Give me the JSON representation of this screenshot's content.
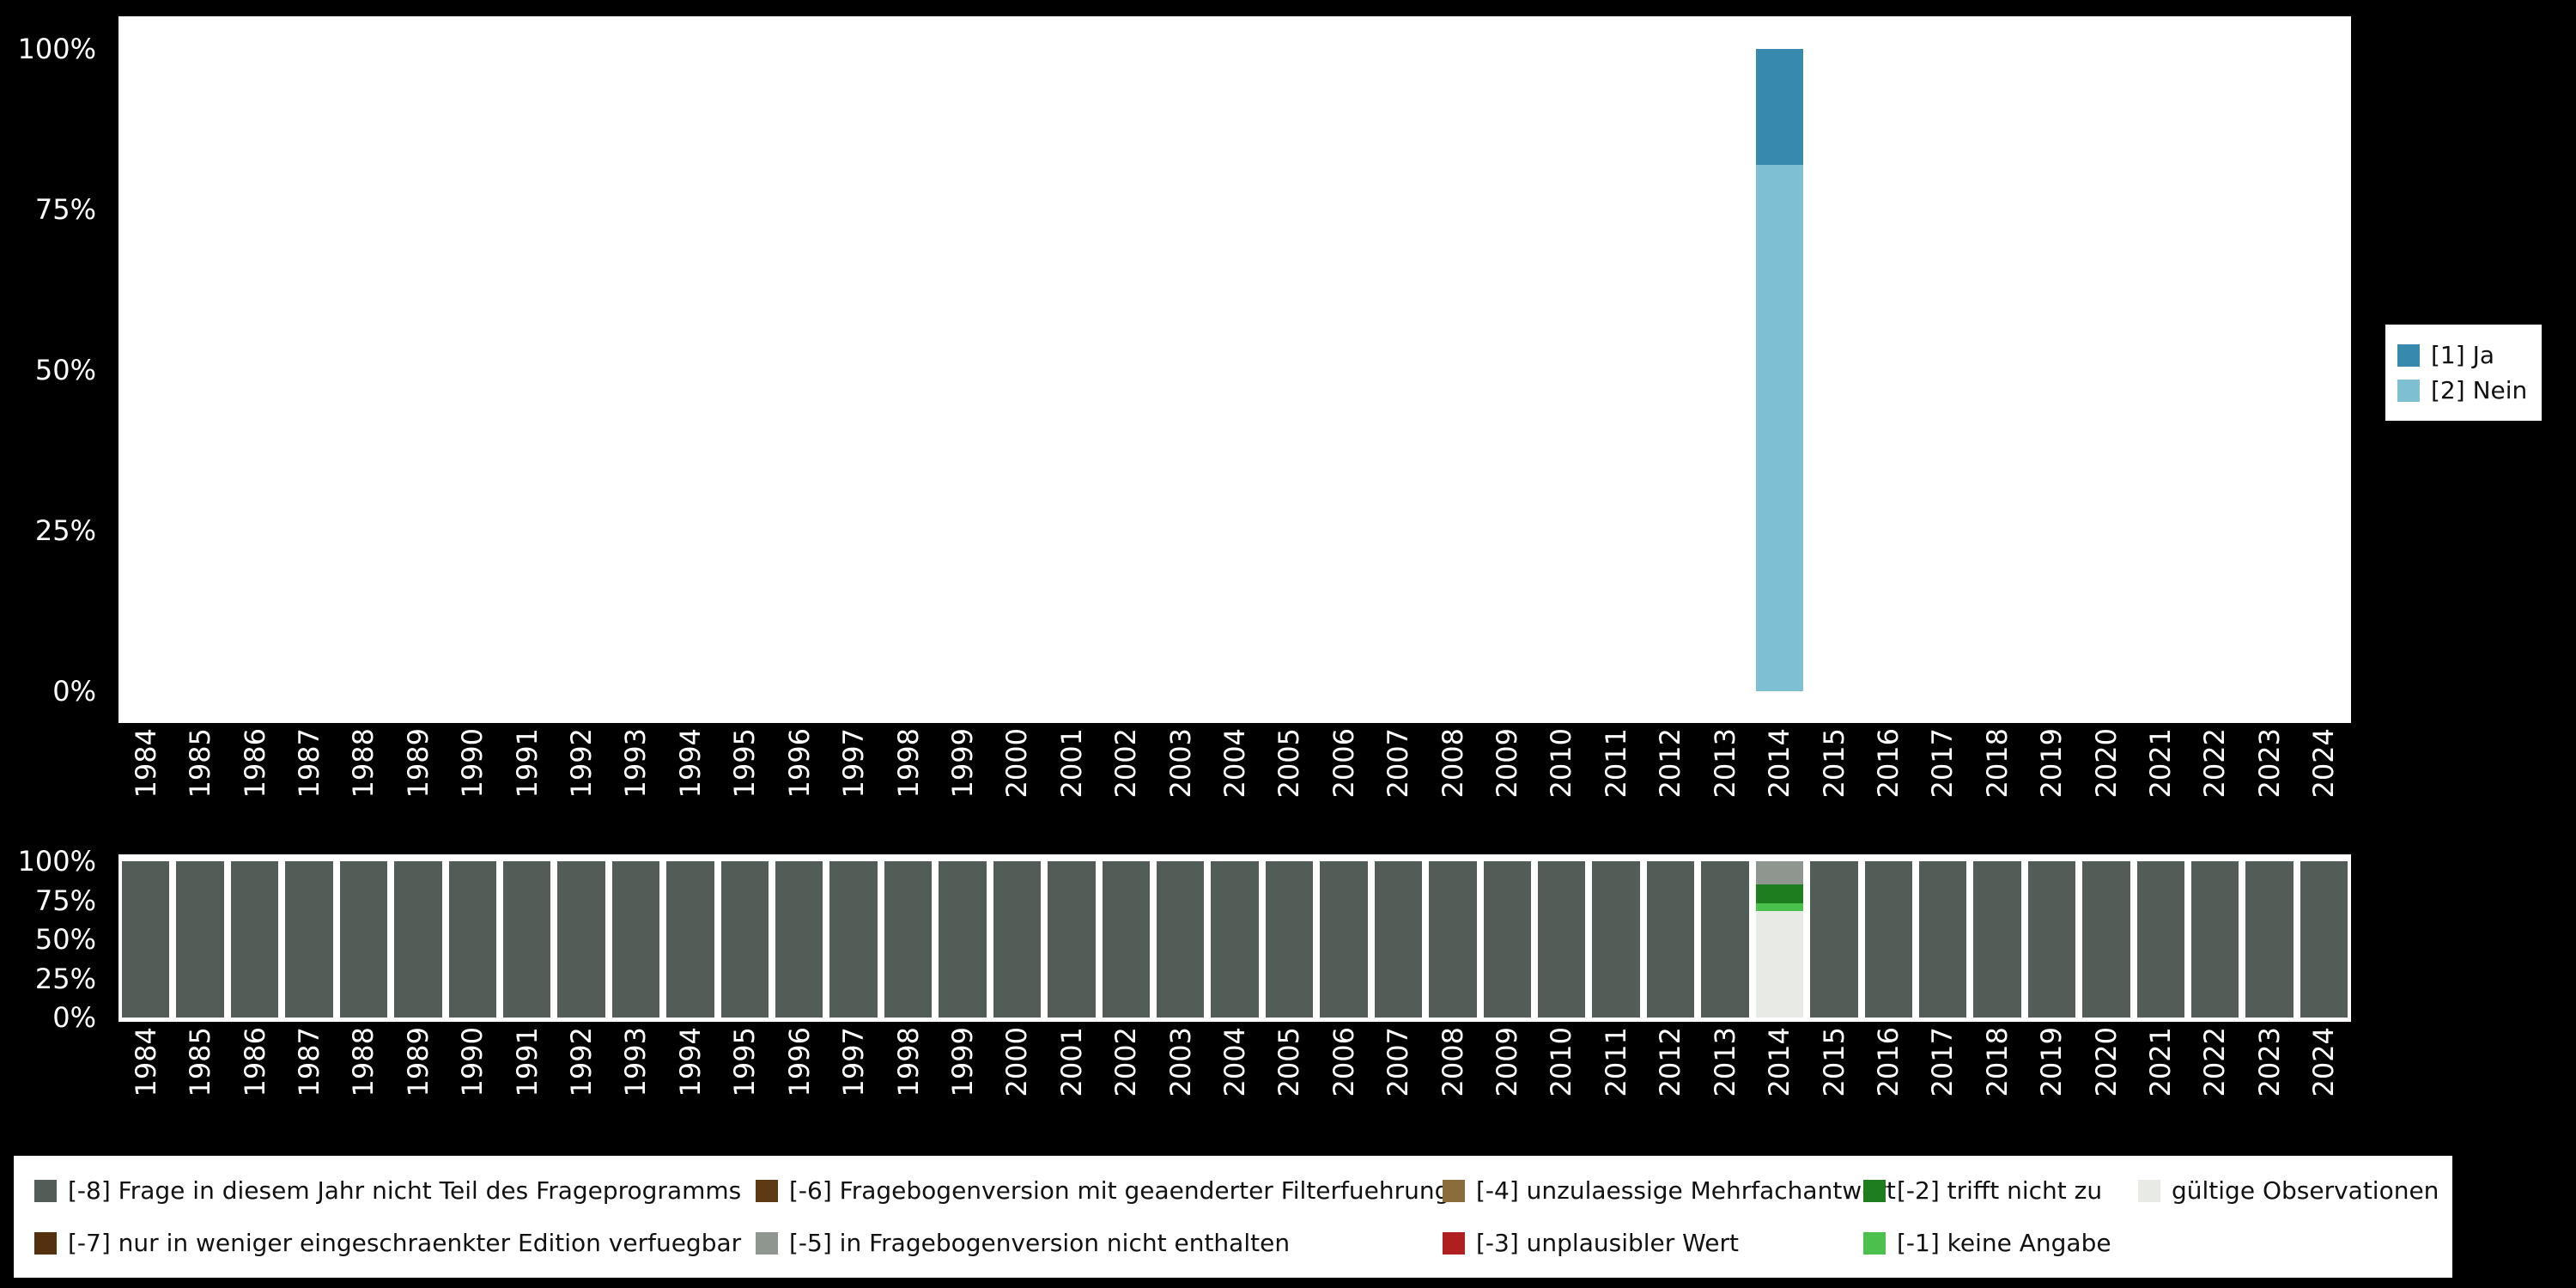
{
  "page": {
    "background_color": "#000000",
    "plot_background_color": "#ffffff",
    "axis_text_color": "#ffffff"
  },
  "chart_data": [
    {
      "name": "distribution-by-year",
      "type": "bar",
      "stacked": true,
      "title": "",
      "xlabel": "",
      "ylabel": "",
      "ylim": [
        0,
        100
      ],
      "grid": false,
      "yticks": [
        100,
        75,
        50,
        25,
        0
      ],
      "ytick_labels": [
        "100%",
        "75%",
        "50%",
        "25%",
        "0%"
      ],
      "categories": [
        "1984",
        "1985",
        "1986",
        "1987",
        "1988",
        "1989",
        "1990",
        "1991",
        "1992",
        "1993",
        "1994",
        "1995",
        "1996",
        "1997",
        "1998",
        "1999",
        "2000",
        "2001",
        "2002",
        "2003",
        "2004",
        "2005",
        "2006",
        "2007",
        "2008",
        "2009",
        "2010",
        "2011",
        "2012",
        "2013",
        "2014",
        "2015",
        "2016",
        "2017",
        "2018",
        "2019",
        "2020",
        "2021",
        "2022",
        "2023",
        "2024"
      ],
      "series": [
        {
          "name": "[1] Ja",
          "color": "#3789ad",
          "values": [
            0,
            0,
            0,
            0,
            0,
            0,
            0,
            0,
            0,
            0,
            0,
            0,
            0,
            0,
            0,
            0,
            0,
            0,
            0,
            0,
            0,
            0,
            0,
            0,
            0,
            0,
            0,
            0,
            0,
            0,
            18,
            0,
            0,
            0,
            0,
            0,
            0,
            0,
            0,
            0,
            0
          ]
        },
        {
          "name": "[2] Nein",
          "color": "#7fbfd4",
          "values": [
            0,
            0,
            0,
            0,
            0,
            0,
            0,
            0,
            0,
            0,
            0,
            0,
            0,
            0,
            0,
            0,
            0,
            0,
            0,
            0,
            0,
            0,
            0,
            0,
            0,
            0,
            0,
            0,
            0,
            0,
            82,
            0,
            0,
            0,
            0,
            0,
            0,
            0,
            0,
            0,
            0
          ]
        }
      ],
      "legend_position": "right",
      "legend_items": [
        {
          "label": "[1] Ja",
          "color": "#3789ad"
        },
        {
          "label": "[2] Nein",
          "color": "#7fbfd4"
        }
      ]
    },
    {
      "name": "missing-values-by-year",
      "type": "bar",
      "stacked": true,
      "title": "",
      "xlabel": "",
      "ylabel": "",
      "ylim": [
        0,
        100
      ],
      "grid": false,
      "yticks": [
        100,
        75,
        50,
        25,
        0
      ],
      "ytick_labels": [
        "100%",
        "75%",
        "50%",
        "25%",
        "0%"
      ],
      "categories": [
        "1984",
        "1985",
        "1986",
        "1987",
        "1988",
        "1989",
        "1990",
        "1991",
        "1992",
        "1993",
        "1994",
        "1995",
        "1996",
        "1997",
        "1998",
        "1999",
        "2000",
        "2001",
        "2002",
        "2003",
        "2004",
        "2005",
        "2006",
        "2007",
        "2008",
        "2009",
        "2010",
        "2011",
        "2012",
        "2013",
        "2014",
        "2015",
        "2016",
        "2017",
        "2018",
        "2019",
        "2020",
        "2021",
        "2022",
        "2023",
        "2024"
      ],
      "series": [
        {
          "name": "[-8] Frage in diesem Jahr nicht Teil des Frageprogramms",
          "color": "#525d57",
          "values": [
            100,
            100,
            100,
            100,
            100,
            100,
            100,
            100,
            100,
            100,
            100,
            100,
            100,
            100,
            100,
            100,
            100,
            100,
            100,
            100,
            100,
            100,
            100,
            100,
            100,
            100,
            100,
            100,
            100,
            100,
            0,
            100,
            100,
            100,
            100,
            100,
            100,
            100,
            100,
            100,
            100
          ]
        },
        {
          "name": "[-5] in Fragebogenversion nicht enthalten",
          "color": "#8e968f",
          "values": [
            0,
            0,
            0,
            0,
            0,
            0,
            0,
            0,
            0,
            0,
            0,
            0,
            0,
            0,
            0,
            0,
            0,
            0,
            0,
            0,
            0,
            0,
            0,
            0,
            0,
            0,
            0,
            0,
            0,
            0,
            15,
            0,
            0,
            0,
            0,
            0,
            0,
            0,
            0,
            0,
            0
          ]
        },
        {
          "name": "[-2] trifft nicht zu",
          "color": "#1e7d1e",
          "values": [
            0,
            0,
            0,
            0,
            0,
            0,
            0,
            0,
            0,
            0,
            0,
            0,
            0,
            0,
            0,
            0,
            0,
            0,
            0,
            0,
            0,
            0,
            0,
            0,
            0,
            0,
            0,
            0,
            0,
            0,
            12,
            0,
            0,
            0,
            0,
            0,
            0,
            0,
            0,
            0,
            0
          ]
        },
        {
          "name": "[-1] keine Angabe",
          "color": "#4cc04c",
          "values": [
            0,
            0,
            0,
            0,
            0,
            0,
            0,
            0,
            0,
            0,
            0,
            0,
            0,
            0,
            0,
            0,
            0,
            0,
            0,
            0,
            0,
            0,
            0,
            0,
            0,
            0,
            0,
            0,
            0,
            0,
            5,
            0,
            0,
            0,
            0,
            0,
            0,
            0,
            0,
            0,
            0
          ]
        },
        {
          "name": "gültige Observationen",
          "color": "#e8eae5",
          "values": [
            0,
            0,
            0,
            0,
            0,
            0,
            0,
            0,
            0,
            0,
            0,
            0,
            0,
            0,
            0,
            0,
            0,
            0,
            0,
            0,
            0,
            0,
            0,
            0,
            0,
            0,
            0,
            0,
            0,
            0,
            68,
            0,
            0,
            0,
            0,
            0,
            0,
            0,
            0,
            0,
            0
          ]
        }
      ],
      "legend_position": "bottom",
      "legend_items": [
        {
          "label": "[-8] Frage in diesem Jahr nicht Teil des Frageprogramms",
          "color": "#525d57"
        },
        {
          "label": "[-7] nur in weniger eingeschraenkter Edition verfuegbar",
          "color": "#54300f"
        },
        {
          "label": "[-6] Fragebogenversion mit geaenderter Filterfuehrung",
          "color": "#5d3a14"
        },
        {
          "label": "[-5] in Fragebogenversion nicht enthalten",
          "color": "#8e968f"
        },
        {
          "label": "[-4] unzulaessige Mehrfachantwort",
          "color": "#8a6d3b"
        },
        {
          "label": "[-3] unplausibler Wert",
          "color": "#b01f1f"
        },
        {
          "label": "[-2] trifft nicht zu",
          "color": "#1e7d1e"
        },
        {
          "label": "[-1] keine Angabe",
          "color": "#4cc04c"
        },
        {
          "label": "gültige Observationen",
          "color": "#e8eae5"
        }
      ]
    }
  ]
}
